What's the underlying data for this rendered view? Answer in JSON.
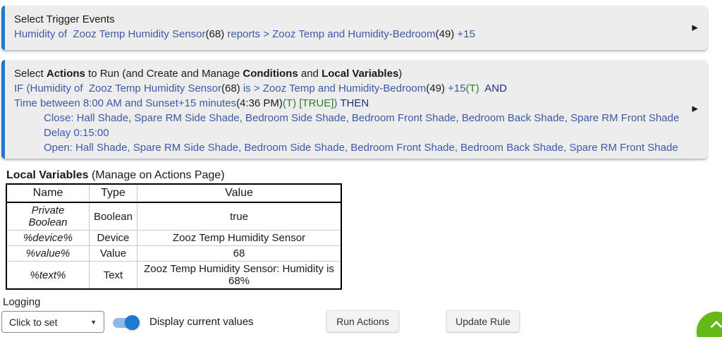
{
  "colors": {
    "accent_bar": "#2179c8",
    "panel_bg": "#ededed",
    "rule_blue": "#3b5aa5",
    "state_green": "#2e7d32",
    "keyword_navy": "#232e7e",
    "toggle_knob": "#1d79d2",
    "fab_green": "#64b818"
  },
  "trigger_panel": {
    "expand_icon": "▶",
    "lines": [
      {
        "segs": [
          [
            "plain",
            "Select Trigger Events"
          ]
        ]
      },
      {
        "segs": [
          [
            "blue",
            "Humidity of  Zooz Temp Humidity Sensor"
          ],
          [
            "black",
            "(68)"
          ],
          [
            "blue",
            " reports > Zooz Temp and Humidity-Bedroom"
          ],
          [
            "black",
            "(49)"
          ],
          [
            "blue",
            " +15"
          ]
        ]
      }
    ]
  },
  "actions_panel": {
    "expand_icon": "▶",
    "lines": [
      {
        "segs": [
          [
            "plain",
            "Select "
          ],
          [
            "bold",
            "Actions"
          ],
          [
            "plain",
            " to Run (and Create and Manage "
          ],
          [
            "bold",
            "Conditions"
          ],
          [
            "plain",
            " and "
          ],
          [
            "bold",
            "Local Variables"
          ],
          [
            "plain",
            ")"
          ]
        ]
      },
      {
        "segs": [
          [
            "blue",
            "IF (Humidity of  Zooz Temp Humidity Sensor"
          ],
          [
            "black",
            "(68)"
          ],
          [
            "blue",
            " is > Zooz Temp and Humidity-Bedroom"
          ],
          [
            "black",
            "(49)"
          ],
          [
            "blue",
            " +15"
          ],
          [
            "green",
            "(T)"
          ],
          [
            "navy",
            "  AND"
          ]
        ]
      },
      {
        "segs": [
          [
            "blue",
            "Time between 8:00 AM and Sunset+15 minutes"
          ],
          [
            "black",
            "(4:36 PM)"
          ],
          [
            "green",
            "(T)"
          ],
          [
            "blue",
            " "
          ],
          [
            "green",
            "[TRUE]"
          ],
          [
            "blue",
            ")"
          ],
          [
            "navy",
            " THEN"
          ]
        ]
      },
      {
        "indent": true,
        "segs": [
          [
            "blue",
            "Close: Hall Shade, Spare RM Side Shade, Bedroom Side Shade, Bedroom Front Shade, Bedroom Back Shade, Spare RM Front Shade"
          ]
        ]
      },
      {
        "indent": true,
        "segs": [
          [
            "blue",
            "Delay 0:15:00"
          ]
        ]
      },
      {
        "indent": true,
        "segs": [
          [
            "blue",
            "Open: Hall Shade, Spare RM Side Shade, Bedroom Side Shade, Bedroom Front Shade, Bedroom Back Shade, Spare RM Front Shade"
          ]
        ]
      }
    ]
  },
  "local_variables": {
    "heading_bold": "Local Variables",
    "heading_rest": " (Manage on Actions Page)",
    "table": {
      "headers": [
        "Name",
        "Type",
        "Value"
      ],
      "rows": [
        [
          "Private Boolean",
          "Boolean",
          "true"
        ],
        [
          "%device%",
          "Device",
          "Zooz Temp Humidity Sensor"
        ],
        [
          "%value%",
          "Value",
          "68"
        ],
        [
          "%text%",
          "Text",
          "Zooz Temp Humidity Sensor: Humidity is 68%"
        ]
      ]
    }
  },
  "footer": {
    "logging_label": "Logging",
    "logging_value": "Click to set",
    "dropdown_icon": "▼",
    "toggle_state": "on",
    "display_values_label": "Display current values",
    "run_actions_label": "Run Actions",
    "update_rule_label": "Update Rule"
  }
}
